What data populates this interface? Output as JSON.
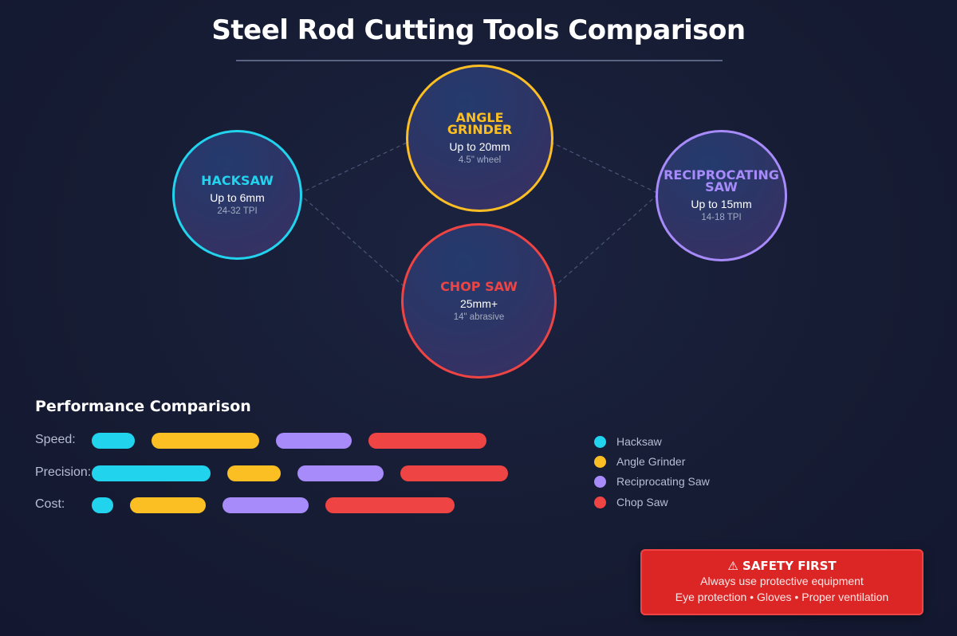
{
  "title": "Steel Rod Cutting Tools Comparison",
  "colors": {
    "hacksaw": "#22d3ee",
    "angle_grinder": "#fbbf24",
    "reciprocating_saw": "#a78bfa",
    "chop_saw": "#ef4444",
    "safety_background": "#dc2626"
  },
  "tools": [
    {
      "id": "hacksaw",
      "name": "HACKSAW",
      "capacity": "Up to 6mm",
      "spec": "24-32 TPI"
    },
    {
      "id": "angle_grinder",
      "name": "ANGLE\nGRINDER",
      "capacity": "Up to 20mm",
      "spec": "4.5\" wheel"
    },
    {
      "id": "reciprocating_saw",
      "name": "RECIPROCATING\nSAW",
      "capacity": "Up to 15mm",
      "spec": "14-18 TPI"
    },
    {
      "id": "chop_saw",
      "name": "CHOP SAW",
      "capacity": "25mm+",
      "spec": "14\" abrasive"
    }
  ],
  "performance": {
    "title": "Performance Comparison",
    "metrics": [
      {
        "label": "Speed:",
        "ratings": {
          "hacksaw": 2,
          "angle_grinder": 5,
          "reciprocating_saw": 3.5,
          "chop_saw": 5.5
        }
      },
      {
        "label": "Precision:",
        "ratings": {
          "hacksaw": 5.5,
          "angle_grinder": 2.5,
          "reciprocating_saw": 4,
          "chop_saw": 5
        }
      },
      {
        "label": "Cost:",
        "ratings": {
          "hacksaw": 1,
          "angle_grinder": 3.5,
          "reciprocating_saw": 4,
          "chop_saw": 6
        }
      }
    ],
    "legend": [
      {
        "id": "hacksaw",
        "label": "Hacksaw"
      },
      {
        "id": "angle_grinder",
        "label": "Angle Grinder"
      },
      {
        "id": "reciprocating_saw",
        "label": "Reciprocating Saw"
      },
      {
        "id": "chop_saw",
        "label": "Chop Saw"
      }
    ]
  },
  "safety": {
    "title": "⚠ SAFETY FIRST",
    "line1": "Always use protective equipment",
    "line2": "Eye protection • Gloves • Proper ventilation"
  }
}
